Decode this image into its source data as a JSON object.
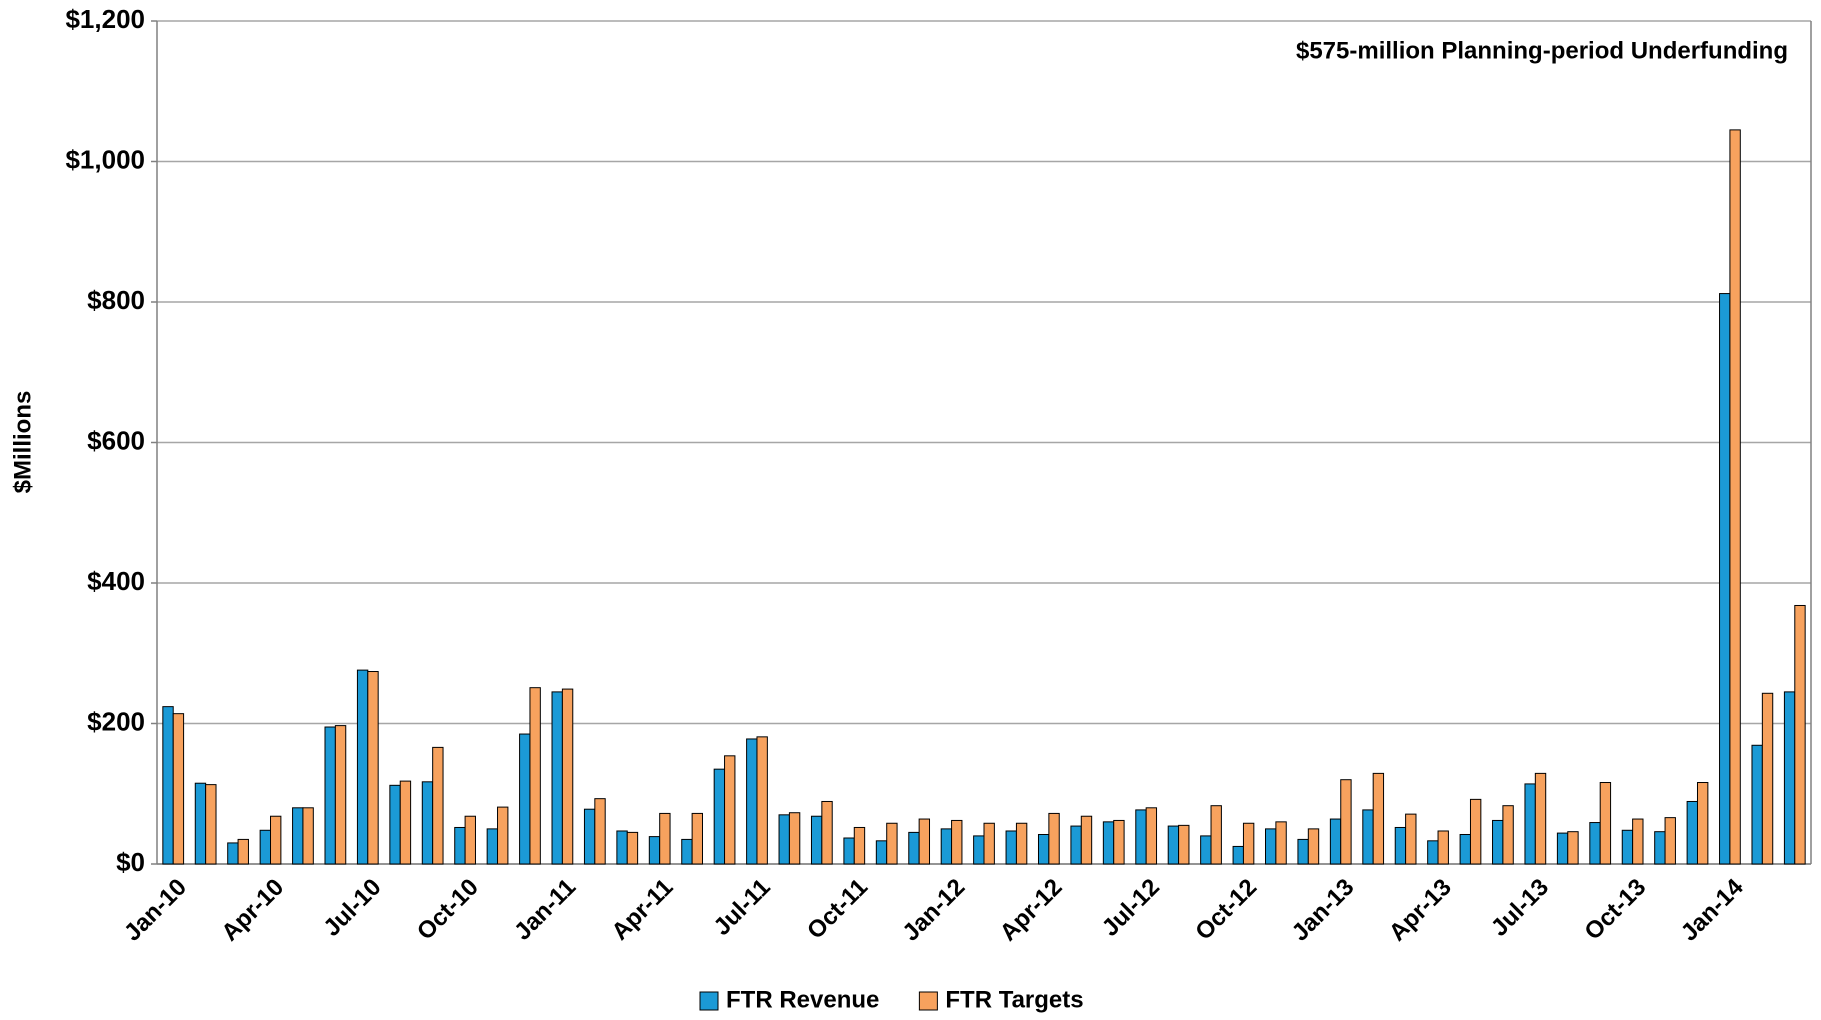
{
  "chart_data": {
    "type": "bar",
    "annotation": "$575-million Planning-period  Underfunding",
    "y_label": "$Millions",
    "categories": [
      "Jan-10",
      null,
      null,
      "Apr-10",
      null,
      null,
      "Jul-10",
      null,
      null,
      "Oct-10",
      null,
      null,
      "Jan-11",
      null,
      null,
      "Apr-11",
      null,
      null,
      "Jul-11",
      null,
      null,
      "Oct-11",
      null,
      null,
      "Jan-12",
      null,
      null,
      "Apr-12",
      null,
      null,
      "Jul-12",
      null,
      null,
      "Oct-12",
      null,
      null,
      "Jan-13",
      null,
      null,
      "Apr-13",
      null,
      null,
      "Jul-13",
      null,
      null,
      "Oct-13",
      null,
      null,
      "Jan-14",
      null,
      null
    ],
    "series": [
      {
        "name": "FTR Revenue",
        "color": "#1b9ad6",
        "values": [
          224,
          115,
          30,
          48,
          80,
          195,
          276,
          112,
          117,
          52,
          50,
          185,
          245,
          78,
          47,
          39,
          35,
          135,
          178,
          70,
          68,
          37,
          33,
          45,
          50,
          40,
          47,
          42,
          54,
          60,
          77,
          54,
          40,
          25,
          50,
          35,
          64,
          77,
          52,
          33,
          42,
          62,
          114,
          44,
          59,
          48,
          46,
          89,
          812,
          169,
          245
        ]
      },
      {
        "name": "FTR Targets",
        "color": "#f7a25e",
        "values": [
          214,
          113,
          35,
          68,
          80,
          197,
          274,
          118,
          166,
          68,
          81,
          251,
          249,
          93,
          45,
          72,
          72,
          154,
          181,
          73,
          89,
          52,
          58,
          64,
          62,
          58,
          58,
          72,
          68,
          62,
          80,
          55,
          83,
          58,
          60,
          50,
          120,
          129,
          71,
          47,
          92,
          83,
          129,
          46,
          116,
          64,
          66,
          116,
          1045,
          243,
          368
        ]
      }
    ],
    "ylim": [
      0,
      1200
    ],
    "yticks": [
      {
        "value": 0,
        "label": "$0"
      },
      {
        "value": 200,
        "label": "$200"
      },
      {
        "value": 400,
        "label": "$400"
      },
      {
        "value": 600,
        "label": "$600"
      },
      {
        "value": 800,
        "label": "$800"
      },
      {
        "value": 1000,
        "label": "$1,000"
      },
      {
        "value": 1200,
        "label": "$1,200"
      }
    ],
    "grid": true,
    "legend": "bottom"
  }
}
